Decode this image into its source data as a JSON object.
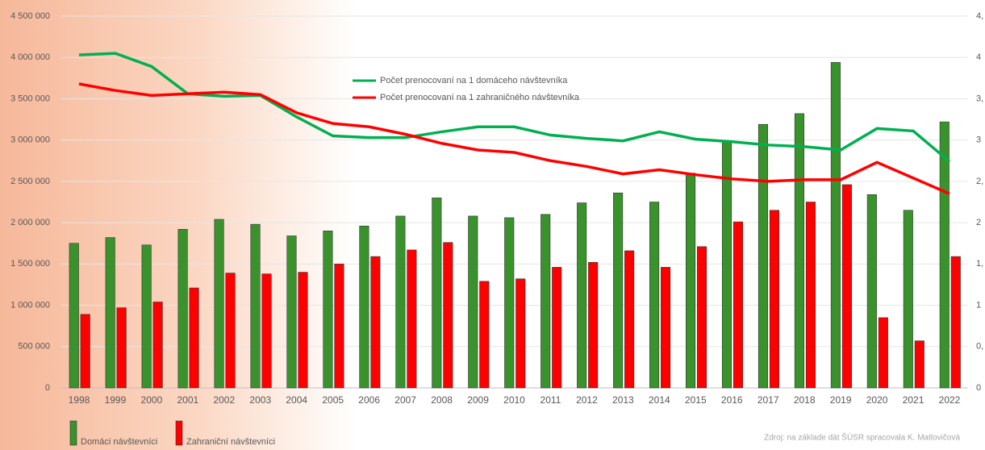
{
  "chart_data": {
    "type": "bar",
    "categories": [
      "1998",
      "1999",
      "2000",
      "2001",
      "2002",
      "2003",
      "2004",
      "2005",
      "2006",
      "2007",
      "2008",
      "2009",
      "2010",
      "2011",
      "2012",
      "2013",
      "2014",
      "2015",
      "2016",
      "2017",
      "2018",
      "2019",
      "2020",
      "2021",
      "2022"
    ],
    "series": [
      {
        "name": "Domáci návštevníci",
        "color": "#3a922d",
        "type": "bar",
        "values": [
          1750000,
          1820000,
          1730000,
          1920000,
          2040000,
          1980000,
          1840000,
          1900000,
          1960000,
          2080000,
          2300000,
          2080000,
          2060000,
          2100000,
          2240000,
          2360000,
          2250000,
          2600000,
          2990000,
          3190000,
          3320000,
          3940000,
          2340000,
          2150000,
          3220000
        ]
      },
      {
        "name": "Zahraniční návštevníci",
        "color": "#ff0000",
        "type": "bar",
        "values": [
          890000,
          970000,
          1040000,
          1210000,
          1390000,
          1380000,
          1400000,
          1500000,
          1590000,
          1670000,
          1760000,
          1290000,
          1320000,
          1460000,
          1520000,
          1660000,
          1460000,
          1710000,
          2010000,
          2150000,
          2250000,
          2460000,
          850000,
          570000,
          1590000
        ]
      },
      {
        "name": "Počet prenocovaní na 1 domáceho návštevníka",
        "color": "#00b050",
        "type": "line",
        "axis": "y2",
        "values": [
          4.03,
          4.05,
          3.89,
          3.56,
          3.53,
          3.54,
          3.28,
          3.05,
          3.03,
          3.03,
          3.1,
          3.16,
          3.16,
          3.06,
          3.02,
          2.99,
          3.1,
          3.01,
          2.98,
          2.94,
          2.92,
          2.88,
          3.14,
          3.11,
          2.74
        ]
      },
      {
        "name": "Počet prenocovaní na 1 zahraničného návštevníka",
        "color": "#ff0000",
        "type": "line",
        "axis": "y2",
        "values": [
          3.68,
          3.6,
          3.54,
          3.56,
          3.58,
          3.55,
          3.33,
          3.2,
          3.16,
          3.07,
          2.96,
          2.88,
          2.85,
          2.75,
          2.68,
          2.59,
          2.64,
          2.58,
          2.53,
          2.5,
          2.52,
          2.52,
          2.73,
          2.54,
          2.35
        ]
      }
    ],
    "ylim": [
      0,
      4500000
    ],
    "yticks": [
      0,
      {
        "value": 500000,
        "label": "500 000"
      },
      {
        "value": 1000000,
        "label": "1 000 000"
      },
      {
        "value": 1500000,
        "label": "1 500 000"
      },
      {
        "value": 2000000,
        "label": "2 000 000"
      },
      {
        "value": 2500000,
        "label": "2 500 000"
      },
      {
        "value": 3000000,
        "label": "3 000 000"
      },
      {
        "value": 3500000,
        "label": "3 500 000"
      },
      {
        "value": 4000000,
        "label": "4 000 000"
      },
      {
        "value": 4500000,
        "label": "4 500 000"
      }
    ],
    "y2lim": [
      0,
      4.5
    ],
    "y2ticks": [
      0,
      {
        "value": 0.5,
        "label": "0,"
      },
      1,
      {
        "value": 1.5,
        "label": "1,"
      },
      2,
      {
        "value": 2.5,
        "label": "2,"
      },
      3,
      {
        "value": 3.5,
        "label": "3,"
      },
      4,
      {
        "value": 4.5,
        "label": "4,"
      }
    ],
    "grid": true,
    "source": "Zdroj: na základe dát ŠÚSR spracovala K. Matlovičová"
  }
}
